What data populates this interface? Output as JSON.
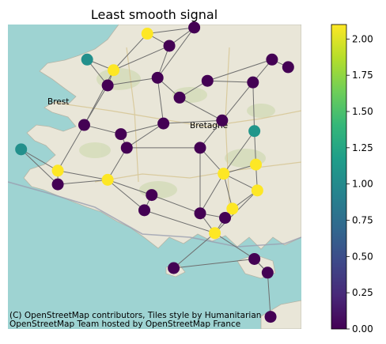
{
  "chart_data": {
    "type": "scatter",
    "title": "Least smooth signal",
    "basemap_attribution": [
      "(C) OpenStreetMap contributors, Tiles style by Humanitarian",
      "OpenStreetMap Team hosted by OpenStreetMap France"
    ],
    "map_labels": [
      "Brest",
      "Bretagne"
    ],
    "colormap": "viridis",
    "colorbar": {
      "range": [
        0,
        2.1
      ],
      "ticks": [
        0,
        0.25,
        0.5,
        0.75,
        1.0,
        1.25,
        1.5,
        1.75,
        2.0
      ],
      "tick_labels": [
        "0.00",
        "0.25",
        "0.50",
        "0.75",
        "1.00",
        "1.25",
        "1.50",
        "1.75",
        "2.00"
      ]
    },
    "nodes": [
      {
        "x": 0.475,
        "y": 0.97,
        "value": 2.1
      },
      {
        "x": 0.635,
        "y": 0.99,
        "value": 0.0
      },
      {
        "x": 0.55,
        "y": 0.93,
        "value": 0.0
      },
      {
        "x": 0.27,
        "y": 0.885,
        "value": 1.05
      },
      {
        "x": 0.36,
        "y": 0.85,
        "value": 2.1
      },
      {
        "x": 0.34,
        "y": 0.8,
        "value": 0.0
      },
      {
        "x": 0.51,
        "y": 0.825,
        "value": 0.0
      },
      {
        "x": 0.585,
        "y": 0.76,
        "value": 0.0
      },
      {
        "x": 0.68,
        "y": 0.815,
        "value": 0.0
      },
      {
        "x": 0.9,
        "y": 0.885,
        "value": 0.0
      },
      {
        "x": 0.955,
        "y": 0.86,
        "value": 0.0
      },
      {
        "x": 0.835,
        "y": 0.81,
        "value": 0.0
      },
      {
        "x": 0.73,
        "y": 0.685,
        "value": 0.0
      },
      {
        "x": 0.26,
        "y": 0.67,
        "value": 0.0
      },
      {
        "x": 0.385,
        "y": 0.64,
        "value": 0.0
      },
      {
        "x": 0.53,
        "y": 0.675,
        "value": 0.0
      },
      {
        "x": 0.84,
        "y": 0.65,
        "value": 1.1
      },
      {
        "x": 0.045,
        "y": 0.59,
        "value": 1.05
      },
      {
        "x": 0.405,
        "y": 0.595,
        "value": 0.0
      },
      {
        "x": 0.655,
        "y": 0.595,
        "value": 0.0
      },
      {
        "x": 0.17,
        "y": 0.52,
        "value": 2.1
      },
      {
        "x": 0.845,
        "y": 0.54,
        "value": 2.1
      },
      {
        "x": 0.17,
        "y": 0.475,
        "value": 0.0
      },
      {
        "x": 0.34,
        "y": 0.49,
        "value": 2.1
      },
      {
        "x": 0.735,
        "y": 0.51,
        "value": 2.1
      },
      {
        "x": 0.49,
        "y": 0.44,
        "value": 0.0
      },
      {
        "x": 0.85,
        "y": 0.455,
        "value": 2.1
      },
      {
        "x": 0.465,
        "y": 0.39,
        "value": 0.0
      },
      {
        "x": 0.655,
        "y": 0.38,
        "value": 0.0
      },
      {
        "x": 0.765,
        "y": 0.395,
        "value": 2.1
      },
      {
        "x": 0.74,
        "y": 0.365,
        "value": 0.0
      },
      {
        "x": 0.705,
        "y": 0.315,
        "value": 2.1
      },
      {
        "x": 0.565,
        "y": 0.2,
        "value": 0.0
      },
      {
        "x": 0.84,
        "y": 0.23,
        "value": 0.0
      },
      {
        "x": 0.885,
        "y": 0.185,
        "value": 0.0
      },
      {
        "x": 0.895,
        "y": 0.04,
        "value": 0.0
      }
    ],
    "edges": [
      [
        0,
        2
      ],
      [
        0,
        1
      ],
      [
        0,
        4
      ],
      [
        1,
        2
      ],
      [
        1,
        6
      ],
      [
        2,
        6
      ],
      [
        2,
        4
      ],
      [
        3,
        4
      ],
      [
        3,
        5
      ],
      [
        4,
        5
      ],
      [
        5,
        6
      ],
      [
        5,
        13
      ],
      [
        4,
        13
      ],
      [
        6,
        7
      ],
      [
        6,
        15
      ],
      [
        7,
        8
      ],
      [
        7,
        12
      ],
      [
        8,
        11
      ],
      [
        9,
        10
      ],
      [
        9,
        11
      ],
      [
        8,
        9
      ],
      [
        11,
        12
      ],
      [
        11,
        16
      ],
      [
        12,
        15
      ],
      [
        12,
        19
      ],
      [
        13,
        14
      ],
      [
        14,
        15
      ],
      [
        14,
        18
      ],
      [
        15,
        18
      ],
      [
        13,
        20
      ],
      [
        17,
        20
      ],
      [
        17,
        22
      ],
      [
        20,
        23
      ],
      [
        18,
        23
      ],
      [
        18,
        19
      ],
      [
        19,
        24
      ],
      [
        19,
        28
      ],
      [
        16,
        21
      ],
      [
        21,
        24
      ],
      [
        16,
        24
      ],
      [
        20,
        22
      ],
      [
        22,
        23
      ],
      [
        23,
        25
      ],
      [
        23,
        27
      ],
      [
        25,
        27
      ],
      [
        25,
        28
      ],
      [
        24,
        26
      ],
      [
        21,
        26
      ],
      [
        24,
        29
      ],
      [
        24,
        28
      ],
      [
        26,
        29
      ],
      [
        28,
        30
      ],
      [
        29,
        30
      ],
      [
        28,
        31
      ],
      [
        30,
        31
      ],
      [
        27,
        31
      ],
      [
        31,
        32
      ],
      [
        31,
        33
      ],
      [
        32,
        33
      ],
      [
        33,
        34
      ],
      [
        34,
        35
      ],
      [
        33,
        34
      ],
      [
        26,
        31
      ]
    ]
  }
}
